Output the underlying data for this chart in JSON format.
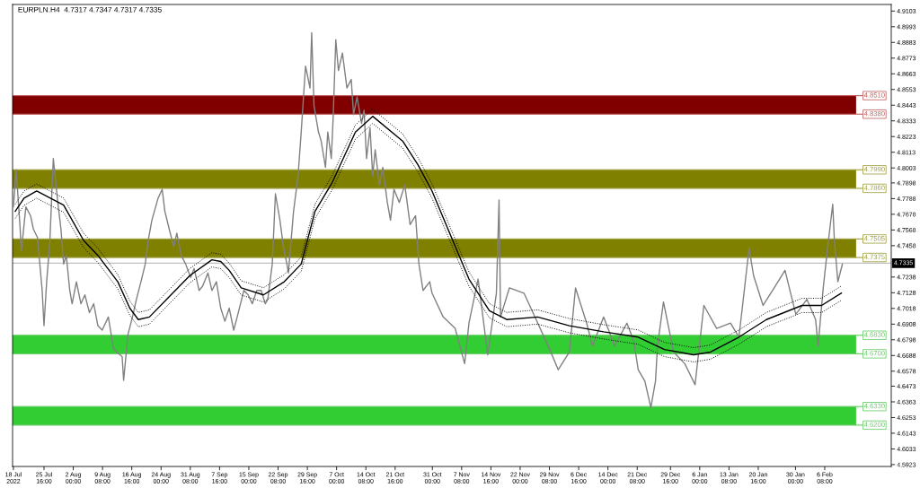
{
  "chart_data": {
    "type": "line",
    "title": "EURPLN.H4  4.7317 4.7347 4.7317 4.7335",
    "xlim": [
      "2022-07-17T19:00",
      "2023-02-23T00:00"
    ],
    "ylim": [
      4.591,
      4.9149
    ],
    "xticks": [
      {
        "value": "2022-07-18T00:00",
        "label": "18 Jul 2022"
      },
      {
        "value": "2022-07-25T16:00",
        "label": "25 Jul 16:00"
      },
      {
        "value": "2022-08-02T00:00",
        "label": "2 Aug 00:00"
      },
      {
        "value": "2022-08-09T08:00",
        "label": "9 Aug 08:00"
      },
      {
        "value": "2022-08-16T16:00",
        "label": "16 Aug 16:00"
      },
      {
        "value": "2022-08-24T00:00",
        "label": "24 Aug 00:00"
      },
      {
        "value": "2022-08-31T08:00",
        "label": "31 Aug 08:00"
      },
      {
        "value": "2022-09-07T16:00",
        "label": "7 Sep 16:00"
      },
      {
        "value": "2022-09-15T00:00",
        "label": "15 Sep 00:00"
      },
      {
        "value": "2022-09-22T08:00",
        "label": "22 Sep 08:00"
      },
      {
        "value": "2022-09-29T16:00",
        "label": "29 Sep 16:00"
      },
      {
        "value": "2022-10-07T00:00",
        "label": "7 Oct 00:00"
      },
      {
        "value": "2022-10-14T08:00",
        "label": "14 Oct 08:00"
      },
      {
        "value": "2022-10-21T16:00",
        "label": "21 Oct 16:00"
      },
      {
        "value": "2022-10-31T00:00",
        "label": "31 Oct 00:00"
      },
      {
        "value": "2022-11-07T08:00",
        "label": "7 Nov 08:00"
      },
      {
        "value": "2022-11-14T16:00",
        "label": "14 Nov 16:00"
      },
      {
        "value": "2022-11-22T00:00",
        "label": "22 Nov 00:00"
      },
      {
        "value": "2022-11-29T08:00",
        "label": "29 Nov 08:00"
      },
      {
        "value": "2022-12-06T16:00",
        "label": "6 Dec 16:00"
      },
      {
        "value": "2022-12-14T00:00",
        "label": "14 Dec 00:00"
      },
      {
        "value": "2022-12-21T08:00",
        "label": "21 Dec 08:00"
      },
      {
        "value": "2022-12-29T16:00",
        "label": "29 Dec 16:00"
      },
      {
        "value": "2023-01-06T00:00",
        "label": "6 Jan 00:00"
      },
      {
        "value": "2023-01-13T08:00",
        "label": "13 Jan 08:00"
      },
      {
        "value": "2023-01-20T16:00",
        "label": "20 Jan 16:00"
      },
      {
        "value": "2023-01-30T00:00",
        "label": "30 Jan 00:00"
      },
      {
        "value": "2023-02-06T08:00",
        "label": "6 Feb 08:00"
      }
    ],
    "yticks": [
      4.9103,
      4.8993,
      4.8883,
      4.8773,
      4.8663,
      4.8553,
      4.8443,
      4.8333,
      4.8223,
      4.8113,
      4.8003,
      4.7898,
      4.7788,
      4.7678,
      4.7568,
      4.7458,
      4.7238,
      4.7128,
      4.7018,
      4.6908,
      4.6798,
      4.6688,
      4.6578,
      4.6473,
      4.6363,
      4.6253,
      4.6143,
      4.6033,
      4.5923
    ],
    "grid": false,
    "legend": false,
    "marker": "none",
    "bands": [
      {
        "axis": "y",
        "from": 4.838,
        "to": 4.851,
        "color": "#800000"
      },
      {
        "axis": "y",
        "from": 4.786,
        "to": 4.799,
        "color": "#808000"
      },
      {
        "axis": "y",
        "from": 4.7375,
        "to": 4.7505,
        "color": "#808000"
      },
      {
        "axis": "y",
        "from": 4.67,
        "to": 4.683,
        "color": "#32cd32"
      },
      {
        "axis": "y",
        "from": 4.62,
        "to": 4.633,
        "color": "#32cd32"
      }
    ],
    "ref_lines": [
      {
        "axis": "y",
        "value": 4.851,
        "label": "4.8510",
        "color": "#c06060"
      },
      {
        "axis": "y",
        "value": 4.838,
        "label": "4.8380",
        "color": "#c06060"
      },
      {
        "axis": "y",
        "value": 4.799,
        "label": "4.7990",
        "color": "#a0a040"
      },
      {
        "axis": "y",
        "value": 4.786,
        "label": "4.7860",
        "color": "#a0a040"
      },
      {
        "axis": "y",
        "value": 4.7505,
        "label": "4.7505",
        "color": "#a0a040"
      },
      {
        "axis": "y",
        "value": 4.7375,
        "label": "4.7375",
        "color": "#a0a040"
      },
      {
        "axis": "y",
        "value": 4.683,
        "label": "4.6830",
        "color": "#66cc66"
      },
      {
        "axis": "y",
        "value": 4.67,
        "label": "4.6700",
        "color": "#66cc66"
      },
      {
        "axis": "y",
        "value": 4.633,
        "label": "4.6330",
        "color": "#66cc66"
      },
      {
        "axis": "y",
        "value": 4.62,
        "label": "4.6200",
        "color": "#66cc66"
      },
      {
        "axis": "y",
        "value": 4.7335,
        "label": "4.7335",
        "color": "#c0c0c0",
        "line_style": "solid"
      }
    ],
    "series": [
      {
        "color": "#808080",
        "line_style": "solid",
        "x": [
          "2022-07-18T00:00",
          "2022-07-18T17:00",
          "2022-07-19T15:00",
          "2022-07-20T00:00",
          "2022-07-21T03:00",
          "2022-07-22T07:00",
          "2022-07-23T00:00",
          "2022-07-24T01:00",
          "2022-07-25T05:00",
          "2022-07-25T16:00",
          "2022-07-26T08:00",
          "2022-07-27T03:00",
          "2022-07-28T00:00",
          "2022-07-28T11:00",
          "2022-07-29T03:00",
          "2022-07-29T22:00",
          "2022-07-30T14:00",
          "2022-07-31T06:00",
          "2022-08-01T03:00",
          "2022-08-01T17:00",
          "2022-08-02T19:00",
          "2022-08-03T22:00",
          "2022-08-04T22:00",
          "2022-08-06T01:00",
          "2022-08-07T03:00",
          "2022-08-08T04:00",
          "2022-08-09T06:00",
          "2022-08-10T19:00",
          "2022-08-12T01:00",
          "2022-08-12T22:00",
          "2022-08-14T06:00",
          "2022-08-14T15:00",
          "2022-08-15T17:00",
          "2022-08-16T20:00",
          "2022-08-17T20:00",
          "2022-08-18T23:00",
          "2022-08-20T01:00",
          "2022-08-20T17:00",
          "2022-08-21T17:00",
          "2022-08-23T06:00",
          "2022-08-24T07:00",
          "2022-08-24T23:00",
          "2022-08-26T01:00",
          "2022-08-27T04:00",
          "2022-08-27T23:00",
          "2022-08-29T01:00",
          "2022-08-30T04:00",
          "2022-08-31T10:00",
          "2022-09-01T07:00",
          "2022-09-02T13:00",
          "2022-09-03T10:00",
          "2022-09-04T18:00",
          "2022-09-05T18:00",
          "2022-09-06T21:00",
          "2022-09-07T23:00",
          "2022-09-09T00:00",
          "2022-09-10T02:00",
          "2022-09-11T05:00",
          "2022-09-12T02:00",
          "2022-09-13T18:00",
          "2022-09-14T20:00",
          "2022-09-15T21:00",
          "2022-09-17T00:00",
          "2022-09-18T02:00",
          "2022-09-19T03:00",
          "2022-09-19T18:00",
          "2022-09-20T21:00",
          "2022-09-21T16:00",
          "2022-09-22T19:00",
          "2022-09-23T16:00",
          "2022-09-24T13:00",
          "2022-09-24T22:00",
          "2022-09-26T05:00",
          "2022-09-27T08:00",
          "2022-09-28T03:00",
          "2022-09-29T05:00",
          "2022-09-30T08:00",
          "2022-09-30T18:00",
          "2022-10-01T08:00",
          "2022-10-02T11:00",
          "2022-10-03T03:00",
          "2022-10-04T05:00",
          "2022-10-04T19:00",
          "2022-10-05T16:00",
          "2022-10-06T03:00",
          "2022-10-06T19:00",
          "2022-10-07T11:00",
          "2022-10-08T11:00",
          "2022-10-09T14:00",
          "2022-10-10T16:00",
          "2022-10-11T06:00",
          "2022-10-12T03:00",
          "2022-10-13T06:00",
          "2022-10-13T21:00",
          "2022-10-14T12:00",
          "2022-10-15T09:00",
          "2022-10-16T01:00",
          "2022-10-16T16:00",
          "2022-10-17T17:00",
          "2022-10-18T14:00",
          "2022-10-19T17:00",
          "2022-10-20T12:00",
          "2022-10-21T09:00",
          "2022-10-22T17:00",
          "2022-10-24T02:00",
          "2022-10-25T10:00",
          "2022-10-26T19:00",
          "2022-10-27T15:00",
          "2022-10-28T16:00",
          "2022-10-30T08:00",
          "2022-10-30T22:00",
          "2022-11-02T17:00",
          "2022-11-05T17:00",
          "2022-11-08T02:00",
          "2022-11-09T04:00",
          "2022-11-11T11:00",
          "2022-11-13T21:00",
          "2022-11-16T01:00",
          "2022-11-16T17:00",
          "2022-11-17T02:00",
          "2022-11-19T07:00",
          "2022-11-22T23:00",
          "2022-11-26T10:00",
          "2022-11-29T10:00",
          "2022-12-01T13:00",
          "2022-12-04T08:00",
          "2022-12-05T21:00",
          "2022-12-08T16:00",
          "2022-12-10T03:00",
          "2022-12-12T22:00",
          "2022-12-15T16:00",
          "2022-12-18T18:00",
          "2022-12-20T11:00",
          "2022-12-21T14:00",
          "2022-12-23T06:00",
          "2022-12-24T18:00",
          "2022-12-25T22:00",
          "2022-12-26T10:00",
          "2022-12-27T22:00",
          "2022-12-30T11:00",
          "2023-01-02T06:00",
          "2023-01-04T20:00",
          "2023-01-07T01:00",
          "2023-01-10T06:00",
          "2023-01-13T17:00",
          "2023-01-15T20:00",
          "2023-01-18T09:00",
          "2023-01-19T12:00",
          "2023-01-21T21:00",
          "2023-01-24T16:00",
          "2023-01-27T09:00",
          "2023-01-30T02:00",
          "2023-02-01T21:00",
          "2023-02-04T01:00",
          "2023-02-04T16:00",
          "2023-02-05T23:00",
          "2023-02-07T02:00",
          "2023-02-08T08:00",
          "2023-02-08T18:00",
          "2023-02-09T15:00",
          "2023-02-10T18:00"
        ],
        "values": [
          4.773,
          4.7989,
          4.7606,
          4.7421,
          4.773,
          4.7668,
          4.7575,
          4.7514,
          4.7144,
          4.6897,
          4.7205,
          4.7483,
          4.8069,
          4.7946,
          4.7761,
          4.7575,
          4.7329,
          4.739,
          4.7144,
          4.7051,
          4.7205,
          4.7051,
          4.7113,
          4.6989,
          4.7051,
          4.6897,
          4.6866,
          4.6958,
          4.6742,
          4.6712,
          4.6681,
          4.6514,
          4.6835,
          4.6958,
          4.7082,
          4.7205,
          4.7329,
          4.7483,
          4.7637,
          4.7791,
          4.7853,
          4.7699,
          4.7575,
          4.7452,
          4.7545,
          4.739,
          4.7329,
          4.7236,
          4.7298,
          4.7144,
          4.7174,
          4.7267,
          4.7144,
          4.7205,
          4.702,
          4.6928,
          4.702,
          4.6866,
          4.6958,
          4.7144,
          4.7113,
          4.7051,
          4.7144,
          4.7144,
          4.7051,
          4.7082,
          4.7329,
          4.7822,
          4.7637,
          4.7452,
          4.7329,
          4.7267,
          4.7699,
          4.7946,
          4.8254,
          4.8717,
          4.8563,
          4.8951,
          4.8439,
          4.8254,
          4.8192,
          4.8007,
          4.8254,
          4.8069,
          4.8347,
          4.8902,
          4.8686,
          4.8809,
          4.8563,
          4.8624,
          4.8378,
          4.8501,
          4.8316,
          4.8408,
          4.8069,
          4.8285,
          4.7946,
          4.8131,
          4.7884,
          4.8007,
          4.7761,
          4.7637,
          4.7853,
          4.7761,
          4.7884,
          4.7606,
          4.7668,
          4.7329,
          4.7144,
          4.7205,
          4.7125,
          4.6958,
          4.6878,
          4.6631,
          4.6915,
          4.7224,
          4.6693,
          4.7125,
          4.7779,
          4.6958,
          4.7162,
          4.7125,
          4.6915,
          4.673,
          4.6588,
          4.6712,
          4.7162,
          4.6915,
          4.6755,
          4.6958,
          4.6755,
          4.6915,
          4.6792,
          4.6588,
          4.6508,
          4.6323,
          4.6508,
          4.6755,
          4.7063,
          4.6712,
          4.6631,
          4.6483,
          4.7039,
          4.6878,
          4.6915,
          4.6817,
          4.744,
          4.7248,
          4.7039,
          4.7162,
          4.7285,
          4.6977,
          4.7082,
          4.694,
          4.6755,
          4.7162,
          4.7452,
          4.7748,
          4.7495,
          4.7205,
          4.7329
        ]
      },
      {
        "color": "#000000",
        "line_style": "solid",
        "x": [
          "2022-07-18T11:00",
          "2022-07-20T16:00",
          "2022-07-23T20:00",
          "2022-07-30T14:00",
          "2022-08-04T14:00",
          "2022-08-08T04:00",
          "2022-08-13T04:00",
          "2022-08-16T04:00",
          "2022-08-18T07:00",
          "2022-08-21T02:00",
          "2022-08-26T01:00",
          "2022-08-31T05:00",
          "2022-09-05T18:00",
          "2022-09-07T23:00",
          "2022-09-10T02:00",
          "2022-09-13T02:00",
          "2022-09-18T16:00",
          "2022-09-23T21:00",
          "2022-09-28T03:00",
          "2022-10-01T14:00",
          "2022-10-05T22:00",
          "2022-10-11T17:00",
          "2022-10-16T01:00",
          "2022-10-23T13:00",
          "2022-10-27T09:00",
          "2022-10-30T22:00",
          "2022-11-04T04:00",
          "2022-11-09T04:00",
          "2022-11-14T07:00",
          "2022-11-18T15:00",
          "2022-11-26T10:00",
          "2022-12-04T08:00",
          "2022-12-12T22:00",
          "2022-12-21T14:00",
          "2022-12-28T04:00",
          "2023-01-04T11:00",
          "2023-01-08T17:00",
          "2023-01-15T20:00",
          "2023-01-22T17:00",
          "2023-01-31T15:00",
          "2023-02-05T13:00",
          "2023-02-10T12:00"
        ],
        "values": [
          4.7699,
          4.7791,
          4.7841,
          4.7742,
          4.7495,
          4.739,
          4.7205,
          4.702,
          4.694,
          4.6958,
          4.71,
          4.7248,
          4.7359,
          4.7347,
          4.7285,
          4.7162,
          4.7113,
          4.7205,
          4.7329,
          4.7699,
          4.7902,
          4.8254,
          4.8365,
          4.8192,
          4.8026,
          4.7841,
          4.7557,
          4.7224,
          4.7002,
          4.694,
          4.6958,
          4.6897,
          4.6854,
          4.6817,
          4.673,
          4.6693,
          4.6712,
          4.6817,
          4.694,
          4.7039,
          4.7039,
          4.7125
        ]
      },
      {
        "color": "#000000",
        "line_style": "dotted",
        "x": [
          "2022-07-18T11:00",
          "2022-07-20T16:00",
          "2022-07-23T20:00",
          "2022-07-30T14:00",
          "2022-08-04T14:00",
          "2022-08-08T04:00",
          "2022-08-13T04:00",
          "2022-08-16T04:00",
          "2022-08-18T07:00",
          "2022-08-21T02:00",
          "2022-08-26T01:00",
          "2022-08-31T05:00",
          "2022-09-05T18:00",
          "2022-09-07T23:00",
          "2022-09-10T02:00",
          "2022-09-13T02:00",
          "2022-09-18T16:00",
          "2022-09-23T21:00",
          "2022-09-28T03:00",
          "2022-10-01T14:00",
          "2022-10-05T22:00",
          "2022-10-11T17:00",
          "2022-10-16T01:00",
          "2022-10-23T13:00",
          "2022-10-27T09:00",
          "2022-10-30T22:00",
          "2022-11-04T04:00",
          "2022-11-09T04:00",
          "2022-11-14T07:00",
          "2022-11-18T15:00",
          "2022-11-26T10:00",
          "2022-12-04T08:00",
          "2022-12-12T22:00",
          "2022-12-21T14:00",
          "2022-12-28T04:00",
          "2023-01-04T11:00",
          "2023-01-08T17:00",
          "2023-01-15T20:00",
          "2023-01-22T17:00",
          "2023-01-31T15:00",
          "2023-02-05T13:00",
          "2023-02-10T12:00"
        ],
        "values": [
          4.7749,
          4.7841,
          4.7891,
          4.7792,
          4.7545,
          4.744,
          4.7255,
          4.707,
          4.699,
          4.7008,
          4.715,
          4.7298,
          4.7409,
          4.7397,
          4.7335,
          4.7212,
          4.7163,
          4.7255,
          4.7379,
          4.7749,
          4.7952,
          4.8304,
          4.8415,
          4.8242,
          4.8076,
          4.7891,
          4.7607,
          4.7274,
          4.7052,
          4.699,
          4.7008,
          4.6947,
          4.6904,
          4.6867,
          4.678,
          4.6743,
          4.6762,
          4.6867,
          4.699,
          4.7089,
          4.7089,
          4.7175
        ]
      },
      {
        "color": "#000000",
        "line_style": "dotted",
        "x": [
          "2022-07-18T11:00",
          "2022-07-20T16:00",
          "2022-07-23T20:00",
          "2022-07-30T14:00",
          "2022-08-04T14:00",
          "2022-08-08T04:00",
          "2022-08-13T04:00",
          "2022-08-16T04:00",
          "2022-08-18T07:00",
          "2022-08-21T02:00",
          "2022-08-26T01:00",
          "2022-08-31T05:00",
          "2022-09-05T18:00",
          "2022-09-07T23:00",
          "2022-09-10T02:00",
          "2022-09-13T02:00",
          "2022-09-18T16:00",
          "2022-09-23T21:00",
          "2022-09-28T03:00",
          "2022-10-01T14:00",
          "2022-10-05T22:00",
          "2022-10-11T17:00",
          "2022-10-16T01:00",
          "2022-10-23T13:00",
          "2022-10-27T09:00",
          "2022-10-30T22:00",
          "2022-11-04T04:00",
          "2022-11-09T04:00",
          "2022-11-14T07:00",
          "2022-11-18T15:00",
          "2022-11-26T10:00",
          "2022-12-04T08:00",
          "2022-12-12T22:00",
          "2022-12-21T14:00",
          "2022-12-28T04:00",
          "2023-01-04T11:00",
          "2023-01-08T17:00",
          "2023-01-15T20:00",
          "2023-01-22T17:00",
          "2023-01-31T15:00",
          "2023-02-05T13:00",
          "2023-02-10T12:00"
        ],
        "values": [
          4.7649,
          4.7741,
          4.7791,
          4.7692,
          4.7445,
          4.734,
          4.7155,
          4.697,
          4.689,
          4.6908,
          4.705,
          4.7198,
          4.7309,
          4.7297,
          4.7235,
          4.7112,
          4.7063,
          4.7155,
          4.7279,
          4.7649,
          4.7852,
          4.8204,
          4.8315,
          4.8142,
          4.7976,
          4.7791,
          4.7507,
          4.7174,
          4.6952,
          4.689,
          4.6908,
          4.6847,
          4.6804,
          4.6767,
          4.668,
          4.6643,
          4.6662,
          4.6767,
          4.689,
          4.6989,
          4.6989,
          4.7075
        ]
      }
    ]
  }
}
